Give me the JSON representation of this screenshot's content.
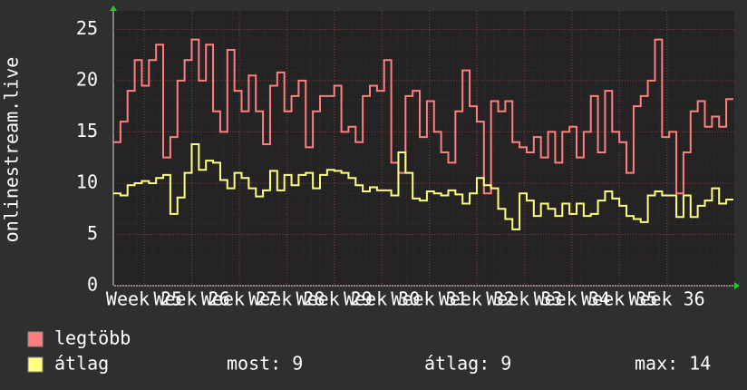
{
  "chart_data": {
    "type": "step-line",
    "y_label": "onlinestream.live",
    "x": [
      24.35,
      24.5,
      24.65,
      24.8,
      24.95,
      25.1,
      25.25,
      25.4,
      25.55,
      25.7,
      25.85,
      26,
      26.15,
      26.3,
      26.45,
      26.6,
      26.75,
      26.9,
      27.05,
      27.2,
      27.35,
      27.5,
      27.65,
      27.8,
      27.95,
      28.1,
      28.25,
      28.4,
      28.55,
      28.7,
      28.85,
      29,
      29.15,
      29.3,
      29.45,
      29.6,
      29.75,
      29.9,
      30.05,
      30.2,
      30.35,
      30.5,
      30.65,
      30.8,
      30.95,
      31.1,
      31.25,
      31.4,
      31.55,
      31.7,
      31.85,
      32,
      32.15,
      32.3,
      32.45,
      32.6,
      32.75,
      32.9,
      33.05,
      33.2,
      33.35,
      33.5,
      33.65,
      33.8,
      33.95,
      34.1,
      34.25,
      34.4,
      34.55,
      34.7,
      34.85,
      35,
      35.15,
      35.3,
      35.45,
      35.6,
      35.75,
      35.9,
      36.05,
      36.2,
      36.35,
      36.5,
      36.65,
      36.8,
      36.95,
      37.1,
      37.25
    ],
    "series": [
      {
        "name": "legtöbb",
        "color": "#ff7f7f",
        "values": [
          14,
          16,
          19,
          22,
          19.5,
          22,
          23.5,
          12.5,
          14.5,
          20,
          22,
          24,
          20,
          23.5,
          17,
          15,
          23,
          19,
          17,
          20.5,
          17,
          13.8,
          19.5,
          20.8,
          17,
          18.5,
          20,
          13.5,
          17,
          18.5,
          18.5,
          19.5,
          15,
          15.5,
          14,
          18.5,
          19.5,
          19,
          22,
          12,
          11,
          18.5,
          19,
          14.5,
          18,
          15,
          13,
          12,
          17,
          21,
          17.5,
          16,
          9,
          18,
          17,
          18,
          14,
          13.5,
          13,
          14.5,
          12.5,
          15,
          12,
          15,
          15.5,
          12.5,
          15,
          18.5,
          13,
          19,
          15,
          14,
          11,
          17.5,
          18.5,
          20,
          24,
          14.5,
          15,
          9,
          13,
          17,
          18,
          15.5,
          16.5,
          15.5,
          18.2
        ]
      },
      {
        "name": "átlag",
        "color": "#ffff7f",
        "values": [
          9,
          8.8,
          9.8,
          10,
          10.2,
          10,
          10.5,
          10.8,
          7,
          8.6,
          11,
          13.8,
          11.3,
          12.2,
          12,
          10.3,
          9.5,
          11,
          10.5,
          9.5,
          8.7,
          9.3,
          11.2,
          9.3,
          10.8,
          9.8,
          10.8,
          11,
          9.5,
          10.8,
          11.3,
          11.2,
          11,
          10.5,
          9.8,
          9.2,
          9.6,
          9.3,
          9.3,
          8.8,
          13,
          11,
          8.5,
          8.3,
          9.2,
          9,
          8.8,
          9.3,
          8.9,
          8,
          9,
          10.5,
          9.8,
          9.5,
          7.5,
          6.5,
          5.5,
          9,
          8.3,
          6.8,
          8,
          7.5,
          6.8,
          8,
          7,
          8,
          6.8,
          7,
          8.3,
          9.2,
          8.5,
          7.8,
          6.8,
          6.5,
          6.2,
          8.8,
          9.2,
          8.8,
          8.8,
          6.7,
          8.8,
          6.7,
          7.8,
          8.3,
          9.5,
          8,
          8.4
        ]
      }
    ],
    "xlim": [
      24.35,
      37.42
    ],
    "xticks": [
      {
        "value": 25,
        "label": "Week 25"
      },
      {
        "value": 26,
        "label": "Week 26"
      },
      {
        "value": 27,
        "label": "Week 27"
      },
      {
        "value": 28,
        "label": "Week 28"
      },
      {
        "value": 29,
        "label": "Week 29"
      },
      {
        "value": 30,
        "label": "Week 30"
      },
      {
        "value": 31,
        "label": "Week 31"
      },
      {
        "value": 32,
        "label": "Week 32"
      },
      {
        "value": 33,
        "label": "Week 33"
      },
      {
        "value": 34,
        "label": "Week 34"
      },
      {
        "value": 35,
        "label": "Week 35"
      },
      {
        "value": 36,
        "label": "Week 36"
      }
    ],
    "ylim": [
      0,
      26.8
    ],
    "yticks": [
      0,
      5,
      10,
      15,
      20,
      25
    ],
    "grid": true,
    "stats": [
      {
        "label": "most:",
        "value": 9
      },
      {
        "label": "átlag:",
        "value": 9
      },
      {
        "label": "max:",
        "value": 14
      }
    ]
  }
}
